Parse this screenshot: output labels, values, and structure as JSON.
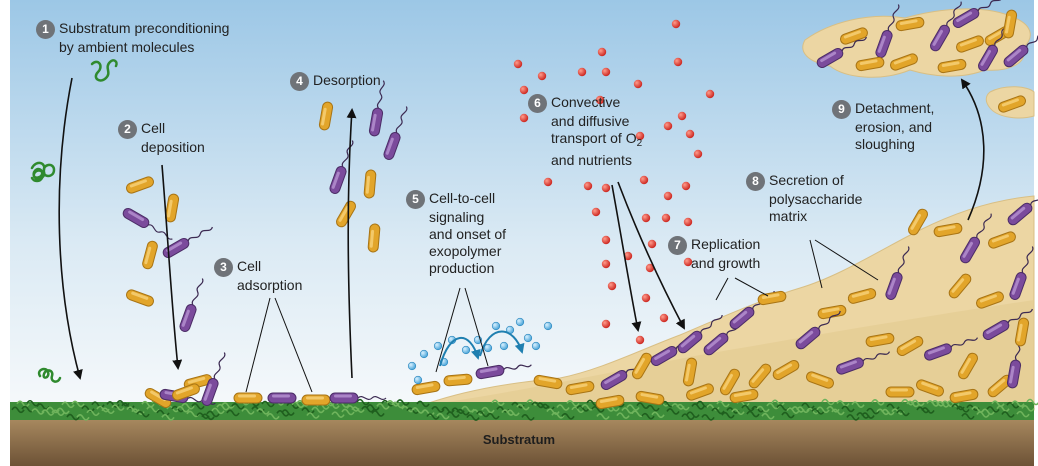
{
  "steps": [
    {
      "number": "1",
      "line1": "Substratum preconditioning",
      "line2": "by ambient molecules"
    },
    {
      "number": "2",
      "line1": "Cell",
      "line2": "deposition"
    },
    {
      "number": "3",
      "line1": "Cell",
      "line2": "adsorption"
    },
    {
      "number": "4",
      "line1": "Desorption"
    },
    {
      "number": "5",
      "line1": "Cell-to-cell",
      "line2": "signaling",
      "line3": "and onset of",
      "line4": "exopolymer",
      "line5": "production"
    },
    {
      "number": "6",
      "line1": "Convective",
      "line2": "and diffusive",
      "line3_pre": "transport of O",
      "line3_sub": "2",
      "line4": "and nutrients"
    },
    {
      "number": "7",
      "line1": "Replication",
      "line2": "and growth"
    },
    {
      "number": "8",
      "line1": "Secretion of",
      "line2": "polysaccharide",
      "line3": "matrix"
    },
    {
      "number": "9",
      "line1": "Detachment,",
      "line2": "erosion, and",
      "line3": "sloughing"
    }
  ],
  "substratum_label": "Substratum",
  "colors": {
    "sky_top": "#9cc7e6",
    "sky_bottom": "#f4f8fb",
    "matrix": "#ecd6a3",
    "yellow_cell": "#e2a52a",
    "purple_cell": "#7b4b9c",
    "oxygen": "#d9302a",
    "signal": "#5fb4e0",
    "grass": "#2f7d2e",
    "ground": "#8a6a44"
  }
}
